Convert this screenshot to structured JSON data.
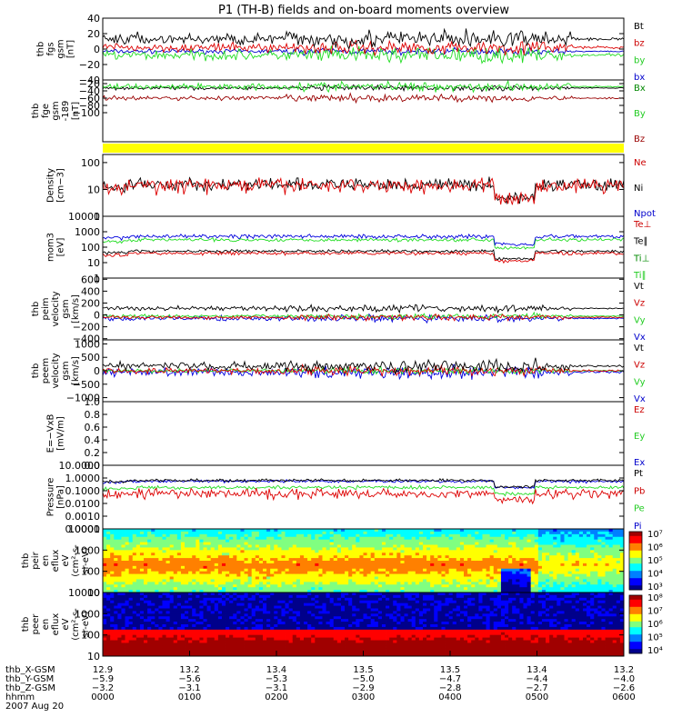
{
  "title": "P1 (TH-B) fields and on-board moments overview",
  "chart_data": {
    "type": "line",
    "time_range_hours": [
      0,
      6
    ],
    "panels": [
      {
        "id": "fgs",
        "ylabel": [
          "thb",
          "fgs",
          "gsm",
          "[nT]"
        ],
        "scale": "lin",
        "ylim": [
          -40,
          40
        ],
        "ticks": [
          {
            "v": -40,
            "t": "−40"
          },
          {
            "v": -20,
            "t": "−20"
          },
          {
            "v": 0,
            "t": "0"
          },
          {
            "v": 20,
            "t": "20"
          },
          {
            "v": 40,
            "t": "40"
          }
        ],
        "legend": [
          {
            "t": "Bt",
            "c": "#000000"
          },
          {
            "t": "bz",
            "c": "#cc0000"
          },
          {
            "t": "by",
            "c": "#22cc22"
          },
          {
            "t": "bx",
            "c": "#0000cc"
          }
        ],
        "series": [
          {
            "name": "bx",
            "color": "#0000cc",
            "base": -3,
            "amp": 3
          },
          {
            "name": "by",
            "color": "#22dd22",
            "base": -8,
            "amp": 7
          },
          {
            "name": "bz",
            "color": "#dd0000",
            "base": 2,
            "amp": 6
          },
          {
            "name": "Bt",
            "color": "#000000",
            "base": 13,
            "amp": 8
          }
        ]
      },
      {
        "id": "fgs_dsl",
        "ylabel": [
          "thb",
          "fge",
          "gsm",
          "-189",
          "[nT]"
        ],
        "scale": "lin",
        "ylim": [
          -180,
          -10
        ],
        "ticks": [
          {
            "v": -20,
            "t": "−20"
          },
          {
            "v": -40,
            "t": "−40"
          },
          {
            "v": -60,
            "t": "−60"
          },
          {
            "v": -80,
            "t": "−80"
          },
          {
            "v": -100,
            "t": "−100"
          }
        ],
        "legend": [
          {
            "t": "Bx",
            "c": "#008800"
          },
          {
            "t": "By",
            "c": "#22cc22"
          },
          {
            "t": "Bz",
            "c": "#990000"
          }
        ],
        "series": [
          {
            "name": "Bx",
            "color": "#000000",
            "base": -32,
            "amp": 5
          },
          {
            "name": "By",
            "color": "#22dd22",
            "base": -28,
            "amp": 9
          },
          {
            "name": "Bz",
            "color": "#990000",
            "base": -60,
            "amp": 7
          }
        ]
      },
      {
        "id": "state",
        "ylabel": [],
        "scale": "bar",
        "ylim": [
          0,
          1
        ],
        "ticks": [],
        "legend": [],
        "series": []
      },
      {
        "id": "density",
        "ylabel": [
          "Density",
          "[cm−3]"
        ],
        "scale": "log",
        "ylim": [
          1,
          200
        ],
        "ticks": [
          {
            "v": 1,
            "t": "1"
          },
          {
            "v": 10,
            "t": "10"
          },
          {
            "v": 100,
            "t": "100"
          }
        ],
        "legend": [
          {
            "t": "Ne",
            "c": "#cc0000"
          },
          {
            "t": "Ni",
            "c": "#000000"
          },
          {
            "t": "Npot",
            "c": "#0000cc"
          }
        ],
        "series": [
          {
            "name": "Ni",
            "color": "#000000",
            "base": 15,
            "amp": 0.25
          },
          {
            "name": "Ne",
            "color": "#dd0000",
            "base": 14,
            "amp": 0.3
          }
        ]
      },
      {
        "id": "temp",
        "ylabel": [
          "mom3",
          "[eV]"
        ],
        "scale": "log",
        "ylim": [
          1,
          10000
        ],
        "ticks": [
          {
            "v": 1,
            "t": "1"
          },
          {
            "v": 10,
            "t": "10"
          },
          {
            "v": 100,
            "t": "100"
          },
          {
            "v": 1000,
            "t": "1000"
          },
          {
            "v": 10000,
            "t": "10000"
          }
        ],
        "legend": [
          {
            "t": "Te⊥",
            "c": "#cc0000"
          },
          {
            "t": "Te∥",
            "c": "#000000"
          },
          {
            "t": "Ti⊥",
            "c": "#008800"
          },
          {
            "t": "Ti∥",
            "c": "#22cc22"
          }
        ],
        "series": [
          {
            "name": "Ti_par",
            "color": "#22dd22",
            "base": 300,
            "amp": 0.12
          },
          {
            "name": "Ti_perp",
            "color": "#0000dd",
            "base": 500,
            "amp": 0.15
          },
          {
            "name": "Te_par",
            "color": "#000000",
            "base": 55,
            "amp": 0.1
          },
          {
            "name": "Te_perp",
            "color": "#dd0000",
            "base": 40,
            "amp": 0.12
          }
        ]
      },
      {
        "id": "peim",
        "ylabel": [
          "thb",
          "peim",
          "velocity",
          "gsm",
          "[km/s]"
        ],
        "scale": "lin",
        "ylim": [
          -420,
          620
        ],
        "ticks": [
          {
            "v": -400,
            "t": "−400"
          },
          {
            "v": -200,
            "t": "−200"
          },
          {
            "v": 0,
            "t": "0"
          },
          {
            "v": 200,
            "t": "200"
          },
          {
            "v": 400,
            "t": "400"
          },
          {
            "v": 600,
            "t": "600"
          }
        ],
        "legend": [
          {
            "t": "Vt",
            "c": "#000000"
          },
          {
            "t": "Vz",
            "c": "#cc0000"
          },
          {
            "t": "Vy",
            "c": "#22cc22"
          },
          {
            "t": "Vx",
            "c": "#0000cc"
          }
        ],
        "series": [
          {
            "name": "Vx",
            "color": "#0000dd",
            "base": -60,
            "amp": 40
          },
          {
            "name": "Vy",
            "color": "#22dd22",
            "base": -20,
            "amp": 30
          },
          {
            "name": "Vz",
            "color": "#dd0000",
            "base": -40,
            "amp": 35
          },
          {
            "name": "Vt",
            "color": "#000000",
            "base": 110,
            "amp": 40
          }
        ]
      },
      {
        "id": "peem",
        "ylabel": [
          "thb",
          "peem",
          "velocity",
          "gsm",
          "[km/s]"
        ],
        "scale": "lin",
        "ylim": [
          -1150,
          1150
        ],
        "ticks": [
          {
            "v": -1000,
            "t": "−1000"
          },
          {
            "v": -500,
            "t": "−500"
          },
          {
            "v": 0,
            "t": "0"
          },
          {
            "v": 500,
            "t": "500"
          },
          {
            "v": 1000,
            "t": "1000"
          }
        ],
        "legend": [
          {
            "t": "Vt",
            "c": "#000000"
          },
          {
            "t": "Vz",
            "c": "#cc0000"
          },
          {
            "t": "Vy",
            "c": "#22cc22"
          },
          {
            "t": "Vx",
            "c": "#0000cc"
          }
        ],
        "series": [
          {
            "name": "Vx",
            "color": "#0000dd",
            "base": -50,
            "amp": 150
          },
          {
            "name": "Vy",
            "color": "#22dd22",
            "base": 0,
            "amp": 80
          },
          {
            "name": "Vz",
            "color": "#dd0000",
            "base": 0,
            "amp": 120
          },
          {
            "name": "Vt",
            "color": "#000000",
            "base": 180,
            "amp": 160
          }
        ]
      },
      {
        "id": "efield",
        "ylabel": [
          "E=−VxB",
          "[mV/m]"
        ],
        "scale": "lin",
        "ylim": [
          0,
          1
        ],
        "ticks": [
          {
            "v": 0,
            "t": "0.0"
          },
          {
            "v": 0.2,
            "t": "0.2"
          },
          {
            "v": 0.4,
            "t": "0.4"
          },
          {
            "v": 0.6,
            "t": "0.6"
          },
          {
            "v": 0.8,
            "t": "0.8"
          },
          {
            "v": 1,
            "t": "1.0"
          }
        ],
        "legend": [
          {
            "t": "Ez",
            "c": "#cc0000"
          },
          {
            "t": "Ey",
            "c": "#22cc22"
          },
          {
            "t": "Ex",
            "c": "#0000cc"
          }
        ],
        "series": []
      },
      {
        "id": "pressure",
        "ylabel": [
          "Pressure",
          "[nPa]"
        ],
        "scale": "log",
        "ylim": [
          0.0001,
          10
        ],
        "ticks": [
          {
            "v": 0.0001,
            "t": "0.0001"
          },
          {
            "v": 0.001,
            "t": "0.0010"
          },
          {
            "v": 0.01,
            "t": "0.0100"
          },
          {
            "v": 0.1,
            "t": "0.1000"
          },
          {
            "v": 1,
            "t": "1.0000"
          },
          {
            "v": 10,
            "t": "10.0000"
          }
        ],
        "legend": [
          {
            "t": "Pt",
            "c": "#000000"
          },
          {
            "t": "Pb",
            "c": "#cc0000"
          },
          {
            "t": "Pe",
            "c": "#22cc22"
          },
          {
            "t": "Pi",
            "c": "#0000cc"
          }
        ],
        "series": [
          {
            "name": "Pi",
            "color": "#0000dd",
            "base": 0.55,
            "amp": 0.12
          },
          {
            "name": "Pt",
            "color": "#000000",
            "base": 0.65,
            "amp": 0.12
          },
          {
            "name": "Pe",
            "color": "#22dd22",
            "base": 0.18,
            "amp": 0.15
          },
          {
            "name": "Pb",
            "color": "#dd0000",
            "base": 0.06,
            "amp": 0.4
          }
        ]
      },
      {
        "id": "peir",
        "ylabel": [
          "thb",
          "peir",
          "en",
          "eflux",
          "eV",
          "(cm²-s-",
          "sr-eV)"
        ],
        "scale": "spec",
        "ylim": [
          10,
          10000
        ],
        "ticks": [
          {
            "v": 10,
            "t": "10"
          },
          {
            "v": 100,
            "t": "100"
          },
          {
            "v": 1000,
            "t": "1000"
          },
          {
            "v": 10000,
            "t": "10000"
          }
        ],
        "legend": [],
        "colorbar": [
          "10³",
          "10⁴",
          "10⁵",
          "10⁶",
          "10⁷"
        ],
        "series": []
      },
      {
        "id": "peer",
        "ylabel": [
          "thb",
          "peer",
          "en",
          "eflux",
          "eV",
          "(cm²-s-",
          "sr-eV)"
        ],
        "scale": "spec",
        "ylim": [
          10,
          10000
        ],
        "ticks": [
          {
            "v": 10,
            "t": "10"
          },
          {
            "v": 100,
            "t": "100"
          },
          {
            "v": 1000,
            "t": "1000"
          },
          {
            "v": 10000,
            "t": "10000"
          }
        ],
        "legend": [],
        "colorbar": [
          "10⁴",
          "10⁵",
          "10⁶",
          "10⁷",
          "10⁸"
        ],
        "series": []
      }
    ],
    "x_axis": {
      "row_labels": [
        "thb_X-GSM",
        "thb_Y-GSM",
        "thb_Z-GSM",
        "hhmm",
        "2007 Aug 20"
      ],
      "ticks": [
        {
          "x": "12.9",
          "y": "−5.9",
          "z": "−3.2",
          "t": "0000"
        },
        {
          "x": "13.2",
          "y": "−5.6",
          "z": "−3.1",
          "t": "0100"
        },
        {
          "x": "13.4",
          "y": "−5.3",
          "z": "−3.1",
          "t": "0200"
        },
        {
          "x": "13.5",
          "y": "−5.0",
          "z": "−2.9",
          "t": "0300"
        },
        {
          "x": "13.5",
          "y": "−4.7",
          "z": "−2.8",
          "t": "0400"
        },
        {
          "x": "13.4",
          "y": "−4.4",
          "z": "−2.7",
          "t": "0500"
        },
        {
          "x": "13.2",
          "y": "−4.0",
          "z": "−2.6",
          "t": "0600"
        }
      ]
    }
  }
}
